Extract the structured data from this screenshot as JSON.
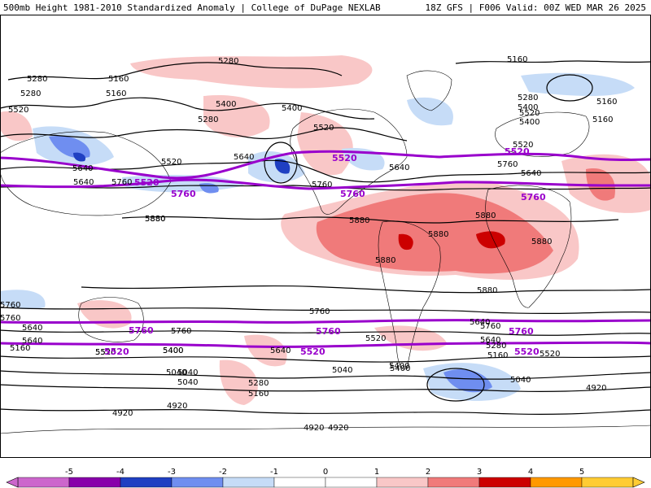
{
  "header": {
    "title_left": "500mb Height 1981-2010 Standardized Anomaly | College of DuPage NEXLAB",
    "title_right": "18Z GFS | F006 Valid: 00Z WED MAR 26 2025"
  },
  "colors": {
    "anom_pos_1": "#f9c7c7",
    "anom_pos_2": "#f07a7a",
    "anom_pos_3": "#cc0000",
    "anom_neg_1": "#c6dcf7",
    "anom_neg_2": "#6f8ef0",
    "anom_neg_3": "#1f3fc2",
    "highlight_contour": "#9900cc",
    "coast": "#000000"
  },
  "contour_labels": [
    "5280",
    "5160",
    "5280",
    "5160",
    "5520",
    "5400",
    "5280",
    "5400",
    "5280",
    "5160",
    "5520",
    "5400",
    "5640",
    "5520",
    "5520",
    "5640",
    "5760",
    "5760",
    "5880",
    "5880",
    "5880",
    "5880",
    "5880",
    "5880",
    "5880",
    "5640",
    "5520",
    "5400",
    "5760",
    "5760",
    "5640",
    "5520",
    "5400",
    "5640",
    "5520",
    "5400",
    "5280",
    "5160",
    "5040",
    "4920",
    "4920",
    "4920",
    "5040",
    "4920",
    "5280",
    "5160",
    "5040",
    "4920",
    "5760",
    "5640",
    "5520",
    "5400",
    "5160",
    "5040",
    "5520",
    "5400",
    "5640",
    "5160",
    "5040",
    "5280",
    "5160",
    "5640",
    "5760",
    "5880",
    "5640",
    "5760",
    "5640",
    "5760"
  ],
  "highlight_labels": [
    "5520",
    "5520",
    "5520",
    "5760",
    "5760",
    "5760",
    "5760",
    "5760",
    "5760",
    "5520",
    "5520",
    "5520",
    "5760",
    "5760"
  ],
  "colorbar": {
    "ticks": [
      "-5",
      "-4",
      "-3",
      "-2",
      "-1",
      "0",
      "1",
      "2",
      "3",
      "4",
      "5"
    ],
    "colors": [
      "#cc66cc",
      "#8800aa",
      "#1f3fc2",
      "#6f8ef0",
      "#c6dcf7",
      "#ffffff",
      "#ffffff",
      "#f9c7c7",
      "#f07a7a",
      "#cc0000",
      "#ff9900",
      "#ffcc33"
    ]
  }
}
